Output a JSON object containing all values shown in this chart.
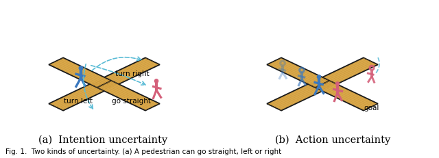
{
  "figure_width": 6.4,
  "figure_height": 2.31,
  "dpi": 100,
  "bg_color": "#ffffff",
  "caption_a": "(a)  Intention uncertainty",
  "caption_b": "(b)  Action uncertainty",
  "caption_fontsize": 10.5,
  "fig_label": "Fig. 1.  Two kinds of uncertainty. (a) A pedestrian can go straight, left or right",
  "fig_label_fontsize": 7.5,
  "blue_color": "#3a78bf",
  "pink_color": "#d4607a",
  "dashed_color": "#5bbcd6",
  "wood_color": "#d9a84b",
  "wood_light": "#e8c070",
  "wood_edge": "#1a1a1a",
  "label_turn_left": "turn left",
  "label_go_straight": "go straight",
  "label_turn_right": "turn right",
  "label_goal": "goal",
  "label_fontsize": 7.5
}
